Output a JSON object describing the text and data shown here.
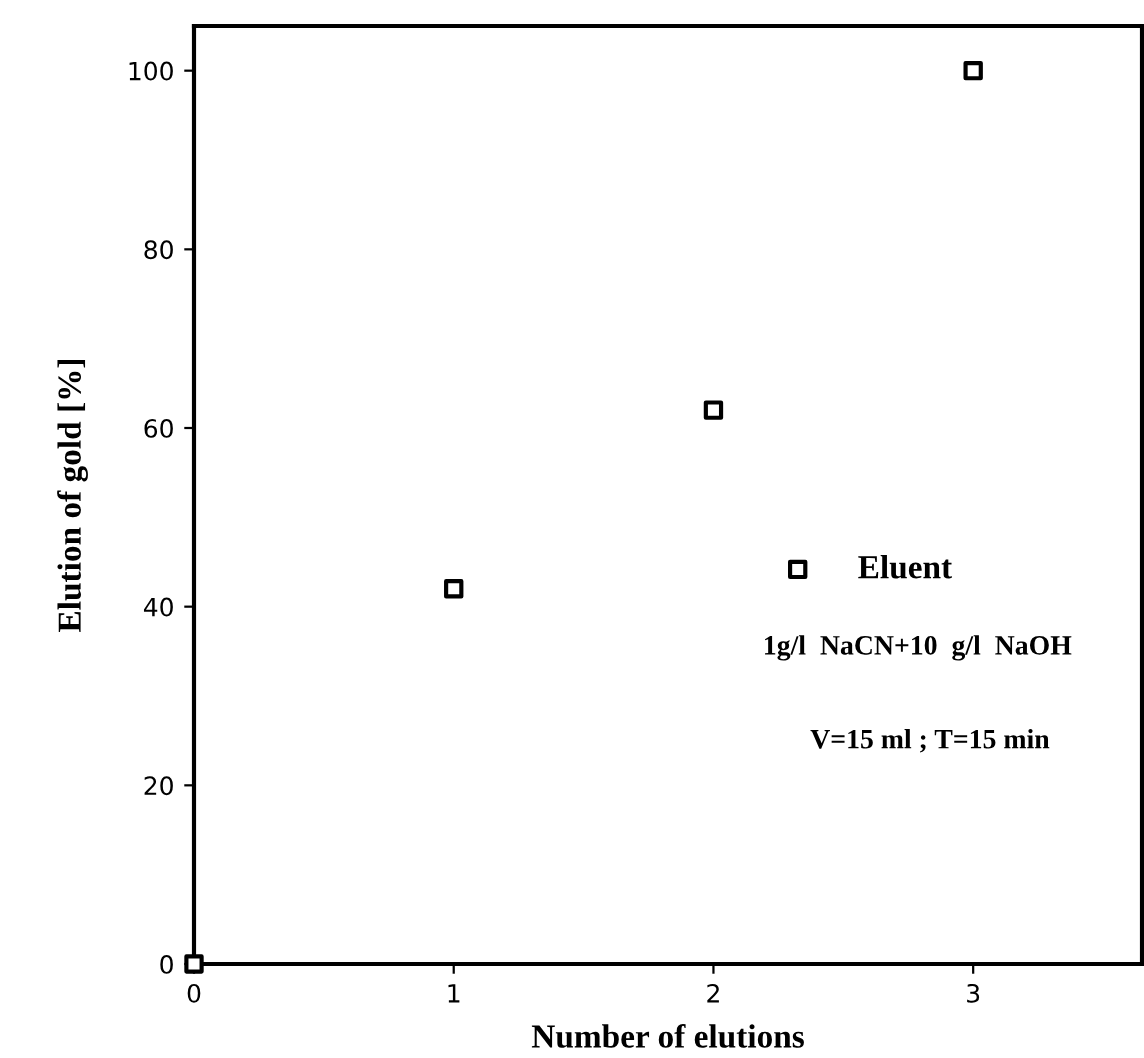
{
  "chart_data": {
    "type": "scatter",
    "xlabel": "Number of elutions",
    "ylabel": "Elution of gold [%]",
    "series": [
      {
        "name": "Eluent",
        "color": "#000000",
        "x": [
          0,
          1,
          2,
          3
        ],
        "values": [
          0,
          42,
          62,
          100
        ]
      }
    ],
    "xlim": [
      0,
      3.65
    ],
    "ylim": [
      0,
      105
    ],
    "xticks": [
      0,
      1,
      2,
      3
    ],
    "yticks": [
      0,
      20,
      40,
      60,
      80,
      100
    ],
    "marker": "square",
    "grid": false,
    "legend": "right",
    "annotations": [
      "1g/l  NaCN+10  g/l  NaOH",
      "V=15 ml ; T=15 min"
    ]
  }
}
